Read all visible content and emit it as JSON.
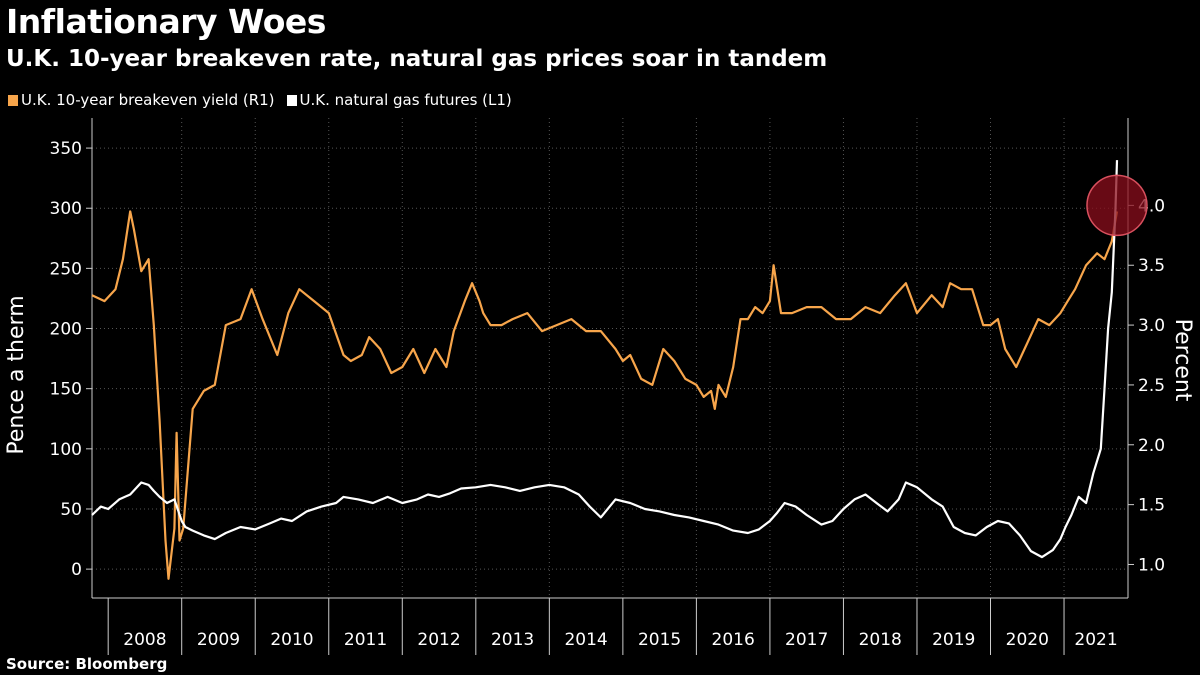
{
  "header": {
    "title": "Inflationary Woes",
    "subtitle": "U.K. 10-year breakeven rate, natural gas prices soar in tandem"
  },
  "footer": {
    "source": "Source: Bloomberg"
  },
  "colors": {
    "background": "#000000",
    "breakeven": "#f7a54b",
    "gas": "#ffffff",
    "highlight": "#8b0d1c",
    "grid": "#555555"
  },
  "chart_data": {
    "type": "line",
    "title": "Inflationary Woes",
    "subtitle": "U.K. 10-year breakeven rate, natural gas prices soar in tandem",
    "legend": [
      {
        "name": "U.K. 10-year breakeven yield (R1)",
        "color": "#f7a54b"
      },
      {
        "name": "U.K. natural gas futures (L1)",
        "color": "#ffffff"
      }
    ],
    "xlabel": "",
    "x_ticks": [
      "2008",
      "2009",
      "2010",
      "2011",
      "2012",
      "2013",
      "2014",
      "2015",
      "2016",
      "2017",
      "2018",
      "2019",
      "2020",
      "2021"
    ],
    "x_range": [
      2007.78,
      2021.87
    ],
    "y_left": {
      "label": "Pence a therm",
      "ticks": [
        0,
        50,
        100,
        150,
        200,
        250,
        300,
        350
      ],
      "range": [
        -24,
        375
      ]
    },
    "y_right": {
      "label": "Percent",
      "ticks": [
        "1.0",
        "1.5",
        "2.0",
        "2.5",
        "3.0",
        "3.5",
        "4.0"
      ],
      "range": [
        0.72,
        4.73
      ]
    },
    "series": [
      {
        "name": "U.K. 10-year breakeven yield (R1)",
        "axis": "right",
        "x": [
          2007.78,
          2007.95,
          2008.1,
          2008.2,
          2008.3,
          2008.35,
          2008.45,
          2008.55,
          2008.62,
          2008.7,
          2008.78,
          2008.82,
          2008.9,
          2008.93,
          2008.97,
          2009.02,
          2009.15,
          2009.3,
          2009.45,
          2009.6,
          2009.8,
          2009.95,
          2010.1,
          2010.3,
          2010.45,
          2010.6,
          2010.8,
          2011.0,
          2011.2,
          2011.3,
          2011.45,
          2011.55,
          2011.7,
          2011.85,
          2012.0,
          2012.15,
          2012.3,
          2012.45,
          2012.6,
          2012.7,
          2012.85,
          2012.95,
          2013.05,
          2013.1,
          2013.2,
          2013.35,
          2013.5,
          2013.7,
          2013.9,
          2014.1,
          2014.3,
          2014.5,
          2014.7,
          2014.9,
          2015.0,
          2015.1,
          2015.25,
          2015.4,
          2015.55,
          2015.7,
          2015.85,
          2016.0,
          2016.1,
          2016.2,
          2016.25,
          2016.3,
          2016.4,
          2016.5,
          2016.6,
          2016.7,
          2016.8,
          2016.9,
          2017.0,
          2017.05,
          2017.15,
          2017.3,
          2017.5,
          2017.7,
          2017.9,
          2018.1,
          2018.3,
          2018.5,
          2018.7,
          2018.85,
          2019.0,
          2019.2,
          2019.35,
          2019.45,
          2019.6,
          2019.75,
          2019.9,
          2020.0,
          2020.1,
          2020.2,
          2020.35,
          2020.5,
          2020.65,
          2020.8,
          2020.95,
          2021.05,
          2021.15,
          2021.3,
          2021.45,
          2021.55,
          2021.65,
          2021.72
        ],
        "y": [
          3.25,
          3.2,
          3.3,
          3.55,
          3.95,
          3.8,
          3.45,
          3.55,
          3.0,
          2.2,
          1.2,
          0.88,
          1.3,
          2.1,
          1.2,
          1.3,
          2.3,
          2.45,
          2.5,
          3.0,
          3.05,
          3.3,
          3.05,
          2.75,
          3.1,
          3.3,
          3.2,
          3.1,
          2.75,
          2.7,
          2.75,
          2.9,
          2.8,
          2.6,
          2.65,
          2.8,
          2.6,
          2.8,
          2.65,
          2.95,
          3.2,
          3.35,
          3.2,
          3.1,
          3.0,
          3.0,
          3.05,
          3.1,
          2.95,
          3.0,
          3.05,
          2.95,
          2.95,
          2.8,
          2.7,
          2.75,
          2.55,
          2.5,
          2.8,
          2.7,
          2.55,
          2.5,
          2.4,
          2.45,
          2.3,
          2.5,
          2.4,
          2.65,
          3.05,
          3.05,
          3.15,
          3.1,
          3.2,
          3.5,
          3.1,
          3.1,
          3.15,
          3.15,
          3.05,
          3.05,
          3.15,
          3.1,
          3.25,
          3.35,
          3.1,
          3.25,
          3.15,
          3.35,
          3.3,
          3.3,
          3.0,
          3.0,
          3.05,
          2.8,
          2.65,
          2.85,
          3.05,
          3.0,
          3.1,
          3.2,
          3.3,
          3.5,
          3.6,
          3.55,
          3.7,
          3.95
        ]
      },
      {
        "name": "U.K. natural gas futures (L1)",
        "axis": "left",
        "x": [
          2007.78,
          2007.9,
          2008.0,
          2008.15,
          2008.3,
          2008.45,
          2008.55,
          2008.62,
          2008.7,
          2008.8,
          2008.9,
          2009.0,
          2009.05,
          2009.15,
          2009.3,
          2009.45,
          2009.6,
          2009.8,
          2010.0,
          2010.2,
          2010.35,
          2010.5,
          2010.7,
          2010.9,
          2011.1,
          2011.2,
          2011.4,
          2011.6,
          2011.8,
          2012.0,
          2012.2,
          2012.35,
          2012.5,
          2012.65,
          2012.8,
          2013.0,
          2013.2,
          2013.4,
          2013.6,
          2013.8,
          2014.0,
          2014.2,
          2014.4,
          2014.55,
          2014.7,
          2014.9,
          2015.1,
          2015.3,
          2015.5,
          2015.7,
          2015.9,
          2016.1,
          2016.3,
          2016.5,
          2016.7,
          2016.85,
          2017.0,
          2017.1,
          2017.2,
          2017.35,
          2017.5,
          2017.7,
          2017.85,
          2018.0,
          2018.15,
          2018.3,
          2018.45,
          2018.6,
          2018.75,
          2018.85,
          2019.0,
          2019.2,
          2019.35,
          2019.5,
          2019.65,
          2019.8,
          2019.95,
          2020.1,
          2020.25,
          2020.4,
          2020.55,
          2020.7,
          2020.85,
          2020.95,
          2021.02,
          2021.1,
          2021.2,
          2021.3,
          2021.4,
          2021.5,
          2021.55,
          2021.6,
          2021.65,
          2021.7,
          2021.72
        ],
        "y": [
          45,
          52,
          50,
          58,
          62,
          72,
          70,
          65,
          60,
          55,
          58,
          40,
          35,
          32,
          28,
          25,
          30,
          35,
          33,
          38,
          42,
          40,
          48,
          52,
          55,
          60,
          58,
          55,
          60,
          55,
          58,
          62,
          60,
          63,
          67,
          68,
          70,
          68,
          65,
          68,
          70,
          68,
          62,
          52,
          43,
          58,
          55,
          50,
          48,
          45,
          43,
          40,
          37,
          32,
          30,
          33,
          40,
          47,
          55,
          52,
          45,
          37,
          40,
          50,
          58,
          62,
          55,
          48,
          58,
          72,
          68,
          58,
          52,
          35,
          30,
          28,
          35,
          40,
          38,
          28,
          15,
          10,
          16,
          25,
          35,
          45,
          60,
          55,
          80,
          100,
          150,
          200,
          230,
          300,
          340
        ]
      }
    ],
    "annotations": [
      {
        "type": "circle-highlight",
        "x": 2021.72,
        "y_right": 4.0,
        "color": "#8b0d1c"
      }
    ]
  }
}
